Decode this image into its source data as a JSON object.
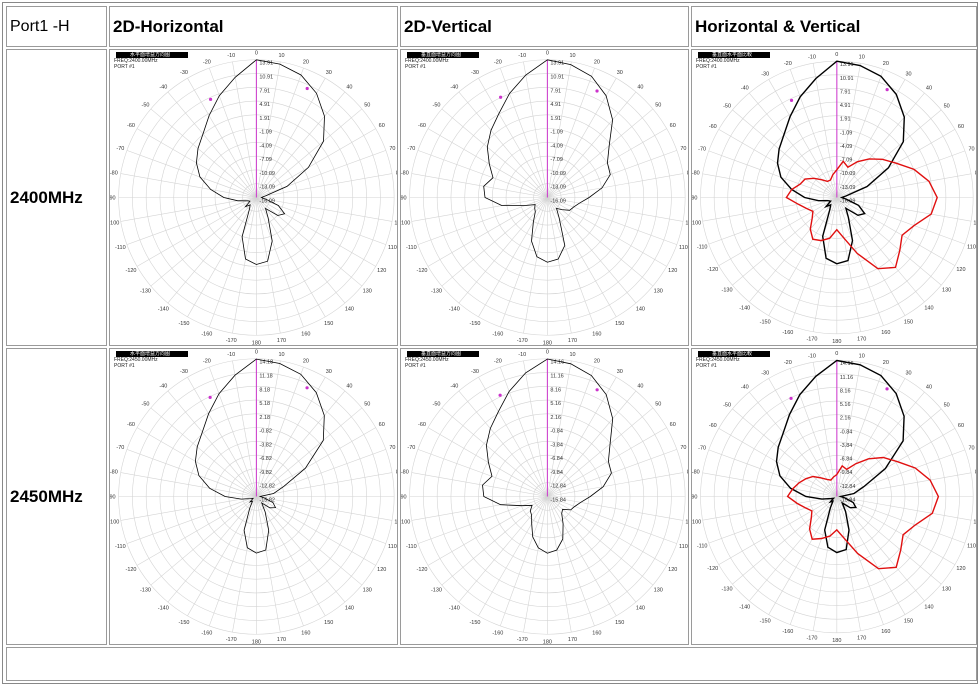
{
  "header": {
    "corner": "Port1 -H",
    "col1": "2D-Horizontal",
    "col2": "2D-Vertical",
    "col3": "Horizontal & Vertical"
  },
  "rows": [
    {
      "label": "2400MHz",
      "freq_text": "FREQ:2400.00MHz",
      "port_text": "PORT #1"
    },
    {
      "label": "2450MHz",
      "freq_text": "FREQ:2450.00MHz",
      "port_text": "PORT #1"
    }
  ],
  "plot_titles": {
    "horizontal": "水平面增益方向图",
    "vertical": "垂直面增益方向图",
    "both": "垂直面水平面比較"
  },
  "colors": {
    "horizontal_trace": "#000000",
    "vertical_overlay_trace": "#e01010",
    "axis_marker": "#cc33cc",
    "grid": "#d4d4d4"
  },
  "angle_labels": [
    "0",
    "10",
    "20",
    "30",
    "40",
    "50",
    "60",
    "70",
    "80",
    "90",
    "100",
    "110",
    "120",
    "130",
    "140",
    "150",
    "160",
    "170",
    "180",
    "-170",
    "-160",
    "-150",
    "-140",
    "-130",
    "-120",
    "-110",
    "-100",
    "-90",
    "-80",
    "-70",
    "-60",
    "-50",
    "-40",
    "-30",
    "-20",
    "-10"
  ],
  "chart_data": [
    {
      "type": "polar",
      "panel": "2400MHz 2D-Horizontal",
      "angle_unit": "deg",
      "radial_labels": [
        "13.91",
        "10.91",
        "7.91",
        "4.91",
        "1.91",
        "-1.09",
        "-4.09",
        "-7.09",
        "-10.09",
        "-13.09",
        "-16.09"
      ],
      "radial_range": [
        -16.09,
        13.91
      ],
      "series": [
        {
          "trace": "horizontal",
          "angles": [
            0,
            10,
            20,
            30,
            40,
            50,
            60,
            70,
            80,
            90,
            100,
            110,
            120,
            130,
            140,
            150,
            160,
            170,
            180,
            190,
            200,
            210,
            220,
            230,
            240,
            250,
            260,
            270,
            280,
            290,
            300,
            310,
            320,
            330,
            340,
            350
          ],
          "gains": [
            13.9,
            13.4,
            12.3,
            10.1,
            7.0,
            3.0,
            -3.0,
            -9.0,
            -14.0,
            -15.0,
            -14.0,
            -11.0,
            -9.0,
            -10.0,
            -13.0,
            -11.0,
            -6.0,
            -2.0,
            -1.5,
            -2.5,
            -7.0,
            -13.0,
            -14.0,
            -13.0,
            -14.5,
            -14.0,
            -12.0,
            -9.0,
            -6.0,
            -3.0,
            -1.0,
            0.5,
            2.0,
            4.5,
            7.5,
            10.5
          ]
        }
      ]
    },
    {
      "type": "polar",
      "panel": "2400MHz 2D-Vertical",
      "angle_unit": "deg",
      "radial_labels": [
        "13.91",
        "10.91",
        "7.91",
        "4.91",
        "1.91",
        "-1.09",
        "-4.09",
        "-7.09",
        "-10.09",
        "-13.09",
        "-16.09"
      ],
      "radial_range": [
        -16.09,
        13.91
      ],
      "series": [
        {
          "trace": "vertical",
          "angles": [
            0,
            10,
            20,
            30,
            40,
            50,
            60,
            70,
            80,
            90,
            100,
            110,
            120,
            130,
            140,
            150,
            160,
            170,
            180,
            190,
            200,
            210,
            220,
            230,
            240,
            250,
            260,
            270,
            280,
            290,
            300,
            310,
            320,
            330,
            340,
            350
          ],
          "gains": [
            13.9,
            13.3,
            12.0,
            9.5,
            6.0,
            1.5,
            -1.0,
            -1.5,
            -4.0,
            -7.0,
            -9.0,
            -10.0,
            -10.5,
            -12.0,
            -13.0,
            -11.0,
            -5.0,
            -2.5,
            -2.0,
            -3.0,
            -6.0,
            -10.0,
            -12.0,
            -12.5,
            -13.0,
            -11.0,
            -6.0,
            -2.5,
            -2.0,
            -3.5,
            -1.5,
            1.0,
            3.0,
            5.0,
            8.0,
            11.0
          ]
        }
      ]
    },
    {
      "type": "polar",
      "panel": "2400MHz Horizontal & Vertical",
      "angle_unit": "deg",
      "radial_labels": [
        "13.91",
        "10.91",
        "7.91",
        "4.91",
        "1.91",
        "-1.09",
        "-4.09",
        "-7.09",
        "-10.09",
        "-13.09",
        "-16.09"
      ],
      "radial_range": [
        -16.09,
        13.91
      ],
      "series": [
        {
          "trace": "horizontal",
          "angles": [
            0,
            10,
            20,
            30,
            40,
            50,
            60,
            70,
            80,
            90,
            100,
            110,
            120,
            130,
            140,
            150,
            160,
            170,
            180,
            190,
            200,
            210,
            220,
            230,
            240,
            250,
            260,
            270,
            280,
            290,
            300,
            310,
            320,
            330,
            340,
            350
          ],
          "gains": [
            13.9,
            13.4,
            12.3,
            10.1,
            7.0,
            3.0,
            -3.0,
            -9.0,
            -14.0,
            -15.0,
            -14.0,
            -11.0,
            -9.0,
            -10.0,
            -13.0,
            -11.0,
            -6.0,
            -2.0,
            -1.5,
            -2.5,
            -7.0,
            -13.0,
            -14.0,
            -13.0,
            -14.5,
            -14.0,
            -12.0,
            -9.0,
            -6.0,
            -3.0,
            -1.0,
            0.5,
            2.0,
            4.5,
            7.5,
            10.5
          ]
        },
        {
          "trace": "vertical",
          "angles": [
            0,
            10,
            20,
            30,
            40,
            50,
            60,
            70,
            80,
            90,
            100,
            110,
            120,
            130,
            140,
            150,
            160,
            170,
            180,
            190,
            200,
            210,
            220,
            230,
            240,
            250,
            260,
            270,
            280,
            290,
            300,
            310,
            320,
            330,
            340,
            350
          ],
          "gains": [
            -10.0,
            -8.0,
            -9.0,
            -7.0,
            -5.0,
            -3.0,
            -1.0,
            2.0,
            4.5,
            6.0,
            5.0,
            2.0,
            0.5,
            2.0,
            4.0,
            2.0,
            -3.0,
            -7.0,
            -9.0,
            -7.0,
            -6.0,
            -5.5,
            -7.0,
            -9.0,
            -10.0,
            -9.0,
            -7.5,
            -5.0,
            -6.0,
            -7.5,
            -8.0,
            -9.5,
            -11.0,
            -12.0,
            -12.0,
            -11.0
          ]
        }
      ]
    },
    {
      "type": "polar",
      "panel": "2450MHz 2D-Horizontal",
      "angle_unit": "deg",
      "radial_labels": [
        "14.18",
        "11.18",
        "8.18",
        "5.18",
        "2.18",
        "-0.82",
        "-3.82",
        "-6.82",
        "-9.82",
        "-12.82",
        "-15.82"
      ],
      "radial_range": [
        -15.82,
        14.18
      ],
      "series": [
        {
          "trace": "horizontal",
          "angles": [
            0,
            10,
            20,
            30,
            40,
            50,
            60,
            70,
            80,
            90,
            100,
            110,
            120,
            130,
            140,
            150,
            160,
            170,
            180,
            190,
            200,
            210,
            220,
            230,
            240,
            250,
            260,
            270,
            280,
            290,
            300,
            310,
            320,
            330,
            340,
            350
          ],
          "gains": [
            14.1,
            13.6,
            12.5,
            10.3,
            7.2,
            3.2,
            -3.5,
            -9.5,
            -12.0,
            -15.0,
            -14.0,
            -12.0,
            -11.0,
            -12.0,
            -14.0,
            -12.0,
            -8.0,
            -4.0,
            -3.5,
            -4.5,
            -8.0,
            -13.0,
            -14.5,
            -14.0,
            -15.0,
            -14.5,
            -12.5,
            -9.0,
            -5.5,
            -2.5,
            -0.5,
            1.0,
            2.5,
            5.0,
            8.0,
            11.0
          ]
        }
      ]
    },
    {
      "type": "polar",
      "panel": "2450MHz 2D-Vertical",
      "angle_unit": "deg",
      "radial_labels": [
        "14.16",
        "11.16",
        "8.16",
        "5.16",
        "2.16",
        "-0.84",
        "-3.84",
        "-6.84",
        "-9.84",
        "-12.84",
        "-15.84"
      ],
      "radial_range": [
        -15.84,
        14.16
      ],
      "series": [
        {
          "trace": "vertical",
          "angles": [
            0,
            10,
            20,
            30,
            40,
            50,
            60,
            70,
            80,
            90,
            100,
            110,
            120,
            130,
            140,
            150,
            160,
            170,
            180,
            190,
            200,
            210,
            220,
            230,
            240,
            250,
            260,
            270,
            280,
            290,
            300,
            310,
            320,
            330,
            340,
            350
          ],
          "gains": [
            14.1,
            13.5,
            12.2,
            9.8,
            6.3,
            2.0,
            -0.5,
            -1.0,
            -3.5,
            -6.5,
            -8.5,
            -9.5,
            -10.0,
            -11.5,
            -11.0,
            -9.0,
            -6.0,
            -4.0,
            -3.5,
            -4.5,
            -6.5,
            -9.0,
            -10.5,
            -11.0,
            -12.0,
            -10.0,
            -5.5,
            -2.0,
            -1.5,
            -3.0,
            -1.0,
            1.5,
            3.5,
            5.5,
            8.5,
            11.5
          ]
        }
      ]
    },
    {
      "type": "polar",
      "panel": "2450MHz Horizontal & Vertical",
      "angle_unit": "deg",
      "radial_labels": [
        "14.16",
        "11.16",
        "8.16",
        "5.16",
        "2.16",
        "-0.84",
        "-3.84",
        "-6.84",
        "-9.84",
        "-12.84",
        "-15.84"
      ],
      "radial_range": [
        -15.84,
        14.16
      ],
      "series": [
        {
          "trace": "horizontal",
          "angles": [
            0,
            10,
            20,
            30,
            40,
            50,
            60,
            70,
            80,
            90,
            100,
            110,
            120,
            130,
            140,
            150,
            160,
            170,
            180,
            190,
            200,
            210,
            220,
            230,
            240,
            250,
            260,
            270,
            280,
            290,
            300,
            310,
            320,
            330,
            340,
            350
          ],
          "gains": [
            14.1,
            13.6,
            12.5,
            10.3,
            7.2,
            3.2,
            -3.5,
            -9.5,
            -12.0,
            -15.0,
            -14.0,
            -12.0,
            -11.0,
            -12.0,
            -14.0,
            -12.0,
            -8.0,
            -4.0,
            -3.5,
            -4.5,
            -8.0,
            -13.0,
            -14.5,
            -14.0,
            -15.0,
            -14.5,
            -12.5,
            -9.0,
            -5.5,
            -2.5,
            -0.5,
            1.0,
            2.5,
            5.0,
            8.0,
            11.0
          ]
        },
        {
          "trace": "vertical",
          "angles": [
            0,
            10,
            20,
            30,
            40,
            50,
            60,
            70,
            80,
            90,
            100,
            110,
            120,
            130,
            140,
            150,
            160,
            170,
            180,
            190,
            200,
            210,
            220,
            230,
            240,
            250,
            260,
            270,
            280,
            290,
            300,
            310,
            320,
            330,
            340,
            350
          ],
          "gains": [
            -11.0,
            -9.0,
            -9.5,
            -7.5,
            -5.0,
            -2.5,
            -0.5,
            2.5,
            5.0,
            6.5,
            5.5,
            2.5,
            1.0,
            2.5,
            4.5,
            2.5,
            -2.5,
            -6.5,
            -8.5,
            -7.0,
            -6.0,
            -5.0,
            -6.5,
            -8.5,
            -9.5,
            -8.5,
            -7.0,
            -5.0,
            -6.0,
            -7.0,
            -8.0,
            -9.0,
            -10.5,
            -11.5,
            -12.0,
            -11.5
          ]
        }
      ]
    }
  ]
}
